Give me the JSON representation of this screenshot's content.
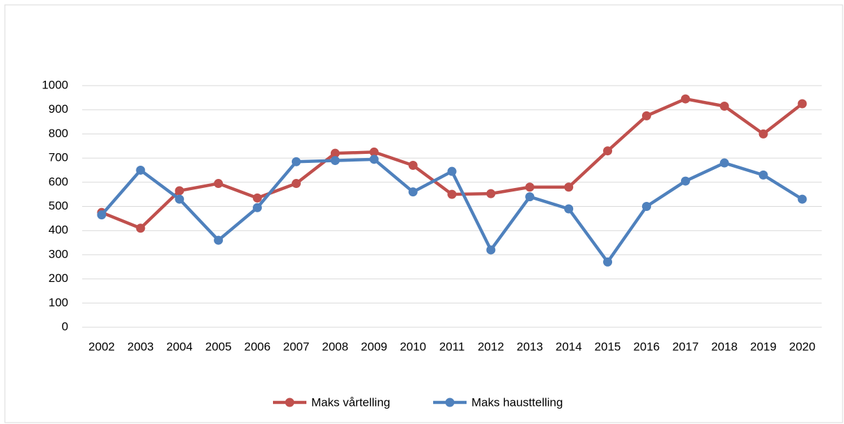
{
  "chart_data": {
    "type": "line",
    "categories": [
      "2002",
      "2003",
      "2004",
      "2005",
      "2006",
      "2007",
      "2008",
      "2009",
      "2010",
      "2011",
      "2012",
      "2013",
      "2014",
      "2015",
      "2016",
      "2017",
      "2018",
      "2019",
      "2020"
    ],
    "series": [
      {
        "name": "Maks vårtelling",
        "color": "#c0504d",
        "values": [
          475,
          410,
          565,
          595,
          535,
          595,
          720,
          725,
          670,
          550,
          553,
          580,
          580,
          730,
          875,
          945,
          915,
          800,
          925
        ]
      },
      {
        "name": "Maks hausttelling",
        "color": "#4f81bd",
        "values": [
          465,
          650,
          530,
          360,
          495,
          685,
          690,
          695,
          560,
          645,
          320,
          540,
          490,
          270,
          500,
          605,
          680,
          630,
          530
        ]
      }
    ],
    "ylim": [
      0,
      1000
    ],
    "yticks": [
      0,
      100,
      200,
      300,
      400,
      500,
      600,
      700,
      800,
      900,
      1000
    ],
    "grid": true,
    "legend": "bottom"
  }
}
